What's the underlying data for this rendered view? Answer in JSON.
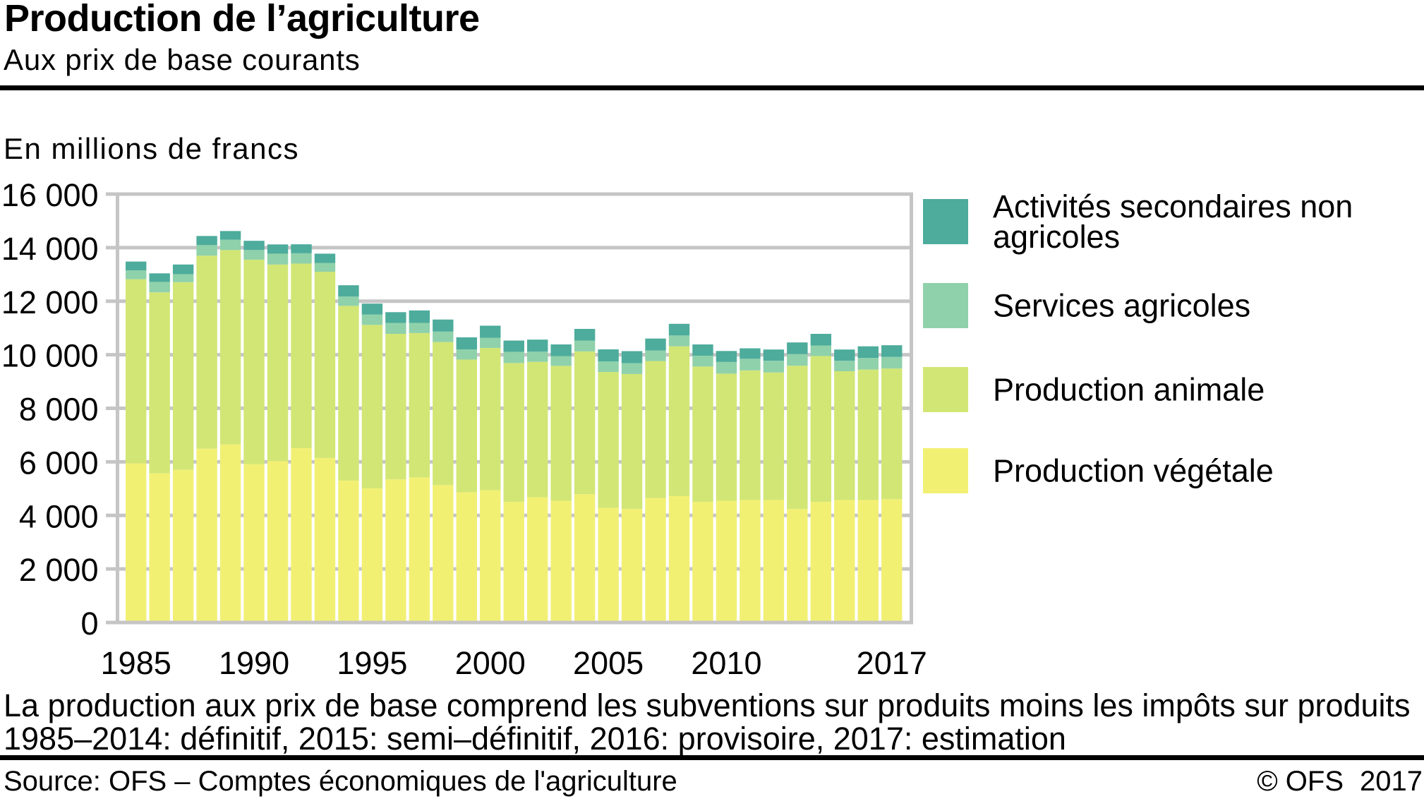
{
  "header": {
    "title": "Production de l’agriculture",
    "subtitle": "Aux prix de base courants"
  },
  "unit_label": "En millions de francs",
  "footnotes": {
    "line1": "La production aux prix de base comprend les subventions sur produits moins les impôts sur produits",
    "line2": "1985–2014: définitif, 2015: semi–définitif, 2016: provisoire, 2017: estimation"
  },
  "source": {
    "text": "Source: OFS – Comptes économiques de l'agriculture",
    "copyright": "© OFS",
    "year": "2017"
  },
  "chart_data": {
    "type": "bar",
    "stacked": true,
    "title": "Production de l’agriculture",
    "subtitle": "Aux prix de base courants",
    "ylabel": "En millions de francs",
    "xlabel": "",
    "ylim": [
      0,
      16000
    ],
    "y_ticks": [
      0,
      2000,
      4000,
      6000,
      8000,
      10000,
      12000,
      14000,
      16000
    ],
    "y_tick_labels": [
      "0",
      "2 000",
      "4 000",
      "6 000",
      "8 000",
      "10 000",
      "12 000",
      "14 000",
      "16 000"
    ],
    "grid": "horizontal major gridlines every 2000, drawn behind bars",
    "legend_position": "right",
    "categories": [
      1985,
      1986,
      1987,
      1988,
      1989,
      1990,
      1991,
      1992,
      1993,
      1994,
      1995,
      1996,
      1997,
      1998,
      1999,
      2000,
      2001,
      2002,
      2003,
      2004,
      2005,
      2006,
      2007,
      2008,
      2009,
      2010,
      2011,
      2012,
      2013,
      2014,
      2015,
      2016,
      2017
    ],
    "x_axis_labeled_years": [
      1985,
      1990,
      1995,
      2000,
      2005,
      2010,
      2017
    ],
    "series": [
      {
        "name": "Production végétale",
        "color": "#f2f073",
        "values": [
          5950,
          5570,
          5700,
          6490,
          6650,
          5910,
          6030,
          6510,
          6145,
          5300,
          5010,
          5345,
          5420,
          5130,
          4865,
          4940,
          4505,
          4680,
          4545,
          4795,
          4285,
          4240,
          4650,
          4720,
          4505,
          4545,
          4575,
          4575,
          4240,
          4505,
          4575,
          4575,
          4605
        ]
      },
      {
        "name": "Production animale",
        "color": "#d2e675",
        "values": [
          6870,
          6760,
          7010,
          7210,
          7260,
          7640,
          7340,
          6895,
          6955,
          6525,
          6105,
          5435,
          5390,
          5345,
          4955,
          5315,
          5185,
          5055,
          5040,
          5330,
          5070,
          5040,
          5115,
          5595,
          5055,
          4750,
          4840,
          4765,
          5350,
          5450,
          4810,
          4870,
          4880
        ]
      },
      {
        "name": "Services agricoles",
        "color": "#8fd1aa",
        "values": [
          330,
          390,
          300,
          395,
          390,
          360,
          405,
          385,
          330,
          350,
          390,
          405,
          380,
          390,
          380,
          380,
          420,
          380,
          365,
          405,
          395,
          405,
          390,
          405,
          405,
          435,
          435,
          435,
          435,
          390,
          390,
          435,
          435
        ]
      },
      {
        "name": "Activités secondaires non agricoles",
        "color": "#4dac9c",
        "values": [
          330,
          320,
          360,
          340,
          320,
          345,
          345,
          335,
          345,
          420,
          405,
          405,
          465,
          450,
          450,
          450,
          420,
          450,
          435,
          435,
          450,
          450,
          450,
          435,
          420,
          410,
          390,
          420,
          435,
          435,
          420,
          435,
          435
        ]
      }
    ]
  },
  "style": {
    "axis_color": "#c5c5c5",
    "text_color": "#000000",
    "background": "#ffffff"
  }
}
